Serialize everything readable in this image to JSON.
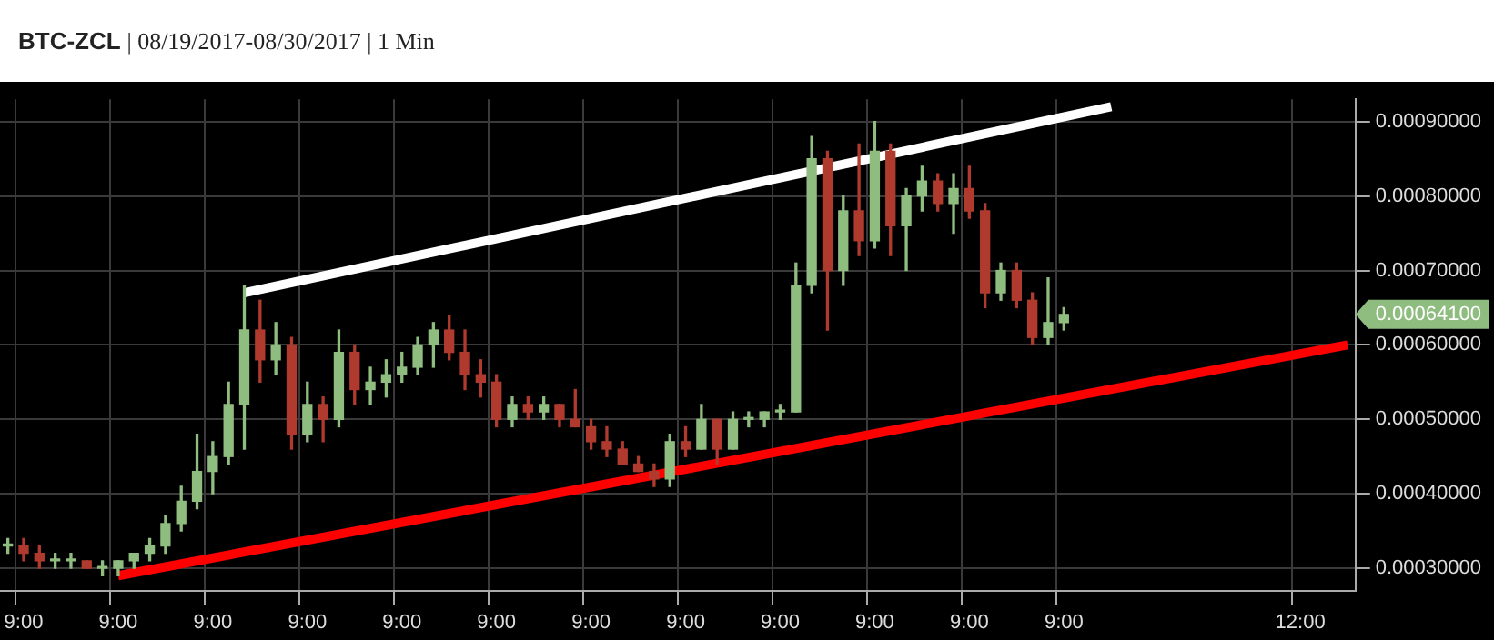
{
  "chart_data": {
    "type": "candlestick",
    "title": "BTC-ZCL | 08/19/2017-08/30/2017 | 1 Min",
    "categories": [
      null,
      "9:00",
      null,
      null,
      null,
      null,
      null,
      "9:00",
      null,
      null,
      null,
      null,
      null,
      "9:00",
      null,
      null,
      null,
      null,
      null,
      "9:00",
      null,
      null,
      null,
      null,
      null,
      "9:00",
      null,
      null,
      null,
      null,
      null,
      "9:00",
      null,
      null,
      null,
      null,
      null,
      "9:00",
      null,
      null,
      null,
      null,
      null,
      "9:00",
      null,
      null,
      null,
      null,
      null,
      "9:00",
      null,
      null,
      null,
      null,
      null,
      "9:00",
      null,
      null,
      null,
      null,
      null,
      "9:00",
      null,
      null,
      null,
      null,
      null,
      "9:00",
      null,
      null,
      null,
      null,
      null,
      null,
      null,
      null,
      null,
      null,
      null,
      null,
      null,
      null,
      "12:00",
      null,
      null,
      null
    ],
    "ohlc": [
      [
        0.00033,
        0.00034,
        0.00032,
        0.00033
      ],
      [
        0.00033,
        0.00034,
        0.00031,
        0.00032
      ],
      [
        0.00032,
        0.00033,
        0.0003,
        0.00031
      ],
      [
        0.00031,
        0.00032,
        0.0003,
        0.00031
      ],
      [
        0.00031,
        0.00032,
        0.0003,
        0.00031
      ],
      [
        0.00031,
        0.00031,
        0.0003,
        0.0003
      ],
      [
        0.0003,
        0.00031,
        0.00029,
        0.0003
      ],
      [
        0.0003,
        0.00031,
        0.00029,
        0.00031
      ],
      [
        0.00031,
        0.00032,
        0.0003,
        0.00032
      ],
      [
        0.00032,
        0.00034,
        0.00031,
        0.00033
      ],
      [
        0.00033,
        0.00037,
        0.00032,
        0.00036
      ],
      [
        0.00036,
        0.00041,
        0.00035,
        0.00039
      ],
      [
        0.00039,
        0.00048,
        0.00038,
        0.00043
      ],
      [
        0.00043,
        0.00047,
        0.0004,
        0.00045
      ],
      [
        0.00045,
        0.00055,
        0.00044,
        0.00052
      ],
      [
        0.00052,
        0.00068,
        0.00046,
        0.00062
      ],
      [
        0.00062,
        0.00066,
        0.00055,
        0.00058
      ],
      [
        0.00058,
        0.00063,
        0.00056,
        0.0006
      ],
      [
        0.0006,
        0.00061,
        0.00046,
        0.00048
      ],
      [
        0.00048,
        0.00055,
        0.00047,
        0.00052
      ],
      [
        0.00052,
        0.00053,
        0.00047,
        0.0005
      ],
      [
        0.0005,
        0.00062,
        0.00049,
        0.00059
      ],
      [
        0.00059,
        0.0006,
        0.00052,
        0.00054
      ],
      [
        0.00054,
        0.00057,
        0.00052,
        0.00055
      ],
      [
        0.00055,
        0.00058,
        0.00053,
        0.00056
      ],
      [
        0.00056,
        0.00059,
        0.00055,
        0.00057
      ],
      [
        0.00057,
        0.00061,
        0.00056,
        0.0006
      ],
      [
        0.0006,
        0.00063,
        0.00057,
        0.00062
      ],
      [
        0.00062,
        0.00064,
        0.00058,
        0.00059
      ],
      [
        0.00059,
        0.00062,
        0.00054,
        0.00056
      ],
      [
        0.00056,
        0.00058,
        0.00053,
        0.00055
      ],
      [
        0.00055,
        0.00056,
        0.00049,
        0.0005
      ],
      [
        0.0005,
        0.00053,
        0.00049,
        0.00052
      ],
      [
        0.00052,
        0.00053,
        0.0005,
        0.00051
      ],
      [
        0.00051,
        0.00053,
        0.0005,
        0.00052
      ],
      [
        0.00052,
        0.00052,
        0.00049,
        0.0005
      ],
      [
        0.0005,
        0.00054,
        0.00049,
        0.00049
      ],
      [
        0.00049,
        0.0005,
        0.00046,
        0.00047
      ],
      [
        0.00047,
        0.00049,
        0.00045,
        0.00046
      ],
      [
        0.00046,
        0.00047,
        0.00044,
        0.00044
      ],
      [
        0.00044,
        0.00045,
        0.00043,
        0.00043
      ],
      [
        0.00043,
        0.00044,
        0.00041,
        0.00042
      ],
      [
        0.00042,
        0.00048,
        0.00041,
        0.00047
      ],
      [
        0.00047,
        0.00049,
        0.00045,
        0.00046
      ],
      [
        0.00046,
        0.00052,
        0.00046,
        0.0005
      ],
      [
        0.0005,
        0.0005,
        0.00044,
        0.00046
      ],
      [
        0.00046,
        0.00051,
        0.00046,
        0.0005
      ],
      [
        0.0005,
        0.00051,
        0.00049,
        0.0005
      ],
      [
        0.0005,
        0.00051,
        0.00049,
        0.00051
      ],
      [
        0.00051,
        0.00052,
        0.0005,
        0.00051
      ],
      [
        0.00051,
        0.00071,
        0.00051,
        0.00068
      ],
      [
        0.00068,
        0.00088,
        0.00067,
        0.00085
      ],
      [
        0.00085,
        0.00086,
        0.00062,
        0.0007
      ],
      [
        0.0007,
        0.0008,
        0.00068,
        0.00078
      ],
      [
        0.00078,
        0.00087,
        0.00072,
        0.00074
      ],
      [
        0.00074,
        0.0009,
        0.00073,
        0.00086
      ],
      [
        0.00086,
        0.00087,
        0.00072,
        0.00076
      ],
      [
        0.00076,
        0.00081,
        0.0007,
        0.0008
      ],
      [
        0.0008,
        0.00084,
        0.00078,
        0.00082
      ],
      [
        0.00082,
        0.00083,
        0.00078,
        0.00079
      ],
      [
        0.00079,
        0.00083,
        0.00075,
        0.00081
      ],
      [
        0.00081,
        0.00084,
        0.00077,
        0.00078
      ],
      [
        0.00078,
        0.00079,
        0.00065,
        0.00067
      ],
      [
        0.00067,
        0.00071,
        0.00066,
        0.0007
      ],
      [
        0.0007,
        0.00071,
        0.00065,
        0.00066
      ],
      [
        0.00066,
        0.00067,
        0.0006,
        0.00061
      ],
      [
        0.00061,
        0.00069,
        0.0006,
        0.00063
      ],
      [
        0.00063,
        0.00065,
        0.00062,
        0.000641
      ],
      null,
      null,
      null,
      null,
      null,
      null,
      null,
      null,
      null,
      null,
      null,
      null,
      null,
      null,
      null,
      null,
      null,
      null
    ],
    "colors": [
      "#8fbc7f",
      "#b03a2e",
      "#b03a2e",
      "#8fbc7f",
      "#8fbc7f",
      "#b03a2e",
      "#8fbc7f",
      "#8fbc7f",
      "#8fbc7f",
      "#8fbc7f",
      "#8fbc7f",
      "#8fbc7f",
      "#8fbc7f",
      "#8fbc7f",
      "#8fbc7f",
      "#8fbc7f",
      "#b03a2e",
      "#8fbc7f",
      "#b03a2e",
      "#8fbc7f",
      "#b03a2e",
      "#8fbc7f",
      "#b03a2e",
      "#8fbc7f",
      "#8fbc7f",
      "#8fbc7f",
      "#8fbc7f",
      "#8fbc7f",
      "#b03a2e",
      "#b03a2e",
      "#b03a2e",
      "#b03a2e",
      "#8fbc7f",
      "#b03a2e",
      "#8fbc7f",
      "#b03a2e",
      "#b03a2e",
      "#b03a2e",
      "#b03a2e",
      "#b03a2e",
      "#b03a2e",
      "#b03a2e",
      "#8fbc7f",
      "#b03a2e",
      "#8fbc7f",
      "#b03a2e",
      "#8fbc7f",
      "#8fbc7f",
      "#8fbc7f",
      "#8fbc7f",
      "#8fbc7f",
      "#8fbc7f",
      "#b03a2e",
      "#8fbc7f",
      "#b03a2e",
      "#8fbc7f",
      "#b03a2e",
      "#8fbc7f",
      "#8fbc7f",
      "#b03a2e",
      "#8fbc7f",
      "#b03a2e",
      "#b03a2e",
      "#8fbc7f",
      "#b03a2e",
      "#b03a2e",
      "#8fbc7f",
      "#8fbc7f",
      null,
      null,
      null,
      null,
      null,
      null,
      null,
      null,
      null,
      null,
      null,
      null,
      null,
      null,
      null,
      null,
      null,
      null
    ],
    "series": [
      {
        "type": "line",
        "color": "#ffffff",
        "values": [
          null,
          null,
          null,
          null,
          null,
          null,
          null,
          null,
          null,
          null,
          null,
          null,
          null,
          null,
          null,
          0.00067,
          null,
          null,
          null,
          null,
          null,
          null,
          null,
          null,
          null,
          null,
          null,
          null,
          null,
          null,
          null,
          null,
          null,
          null,
          null,
          null,
          null,
          null,
          null,
          null,
          null,
          null,
          null,
          null,
          null,
          null,
          null,
          null,
          null,
          null,
          null,
          null,
          null,
          null,
          null,
          null,
          null,
          null,
          null,
          null,
          null,
          null,
          null,
          null,
          null,
          null,
          null,
          null,
          null,
          null,
          0.00092,
          null,
          null,
          null,
          null,
          null,
          null,
          null,
          null,
          null,
          null,
          null,
          null,
          null,
          null,
          null
        ]
      },
      {
        "type": "line",
        "color": "#ff0000",
        "values": [
          null,
          null,
          null,
          null,
          null,
          null,
          null,
          0.00029,
          null,
          null,
          null,
          null,
          null,
          null,
          null,
          null,
          null,
          null,
          null,
          null,
          null,
          null,
          null,
          null,
          null,
          null,
          null,
          null,
          null,
          null,
          null,
          null,
          null,
          null,
          null,
          null,
          null,
          null,
          null,
          null,
          null,
          null,
          null,
          null,
          null,
          null,
          null,
          null,
          null,
          null,
          null,
          null,
          null,
          null,
          null,
          null,
          null,
          null,
          null,
          null,
          null,
          null,
          null,
          null,
          null,
          null,
          null,
          null,
          null,
          null,
          null,
          null,
          null,
          null,
          null,
          null,
          null,
          null,
          null,
          null,
          null,
          null,
          null,
          null,
          null,
          0.0006
        ]
      }
    ],
    "ylim": [
      0.00027,
      0.00093
    ],
    "yticks": [
      {
        "value": 0.0003,
        "label": "0.00030000"
      },
      {
        "value": 0.0004,
        "label": "0.00040000"
      },
      {
        "value": 0.0005,
        "label": "0.00050000"
      },
      {
        "value": 0.0006,
        "label": "0.00060000"
      },
      {
        "value": 0.0007,
        "label": "0.00070000"
      },
      {
        "value": 0.0008,
        "label": "0.00080000"
      },
      {
        "value": 0.0009,
        "label": "0.00090000"
      }
    ],
    "annotations": [
      "0.00064100"
    ],
    "grid": true
  }
}
